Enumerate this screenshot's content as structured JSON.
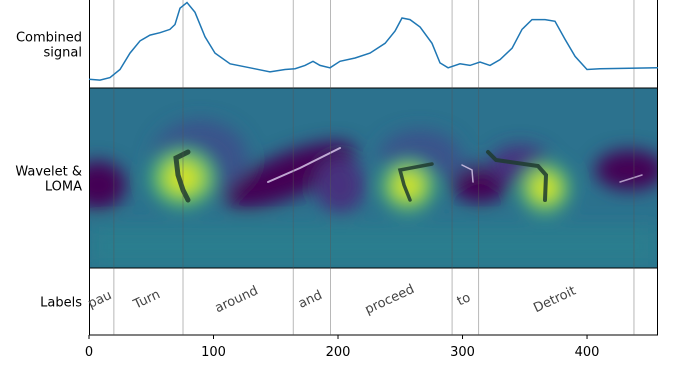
{
  "chart_data": {
    "type": "line",
    "panel_labels": [
      [
        "Combined",
        "signal"
      ],
      [
        "Wavelet &",
        "LOMA"
      ],
      [
        "Labels"
      ]
    ],
    "x": [
      0,
      8.8,
      16.9,
      24.9,
      32.9,
      41,
      49,
      57,
      65,
      69.1,
      73.1,
      78.7,
      85.1,
      93.2,
      101.2,
      113.3,
      129.3,
      145.4,
      157.4,
      165.5,
      173.5,
      179.9,
      185.5,
      193.6,
      201.6,
      213.7,
      225.7,
      237.8,
      245.8,
      251.4,
      257.8,
      265.9,
      275.5,
      281.9,
      288.4,
      298,
      306,
      314,
      322.1,
      330.1,
      339.8,
      347.8,
      355.8,
      366.3,
      374.3,
      382.3,
      390.4,
      400,
      410.4,
      457
    ],
    "values": [
      0.07,
      0.06,
      0.09,
      0.19,
      0.39,
      0.54,
      0.61,
      0.64,
      0.68,
      0.74,
      0.94,
      1.01,
      0.89,
      0.59,
      0.39,
      0.26,
      0.21,
      0.16,
      0.19,
      0.2,
      0.24,
      0.29,
      0.24,
      0.21,
      0.29,
      0.33,
      0.39,
      0.51,
      0.66,
      0.82,
      0.8,
      0.71,
      0.51,
      0.27,
      0.21,
      0.26,
      0.24,
      0.28,
      0.24,
      0.31,
      0.45,
      0.68,
      0.8,
      0.8,
      0.78,
      0.56,
      0.35,
      0.19,
      0.2,
      0.21
    ],
    "color": "#1f77b4",
    "ylim": [
      0,
      1.04
    ],
    "xlim": [
      0,
      457
    ],
    "xticks": [
      0,
      100,
      200,
      300,
      400
    ],
    "boundaries": [
      20,
      75.5,
      164,
      194,
      291.6,
      313,
      437.7
    ],
    "words": [
      "pau",
      "Turn",
      "around",
      "and",
      "proceed",
      "to",
      "Detroit"
    ],
    "prominence": [
      0.3,
      1.0,
      0.35,
      0.3,
      0.85,
      0.3,
      0.9
    ]
  }
}
